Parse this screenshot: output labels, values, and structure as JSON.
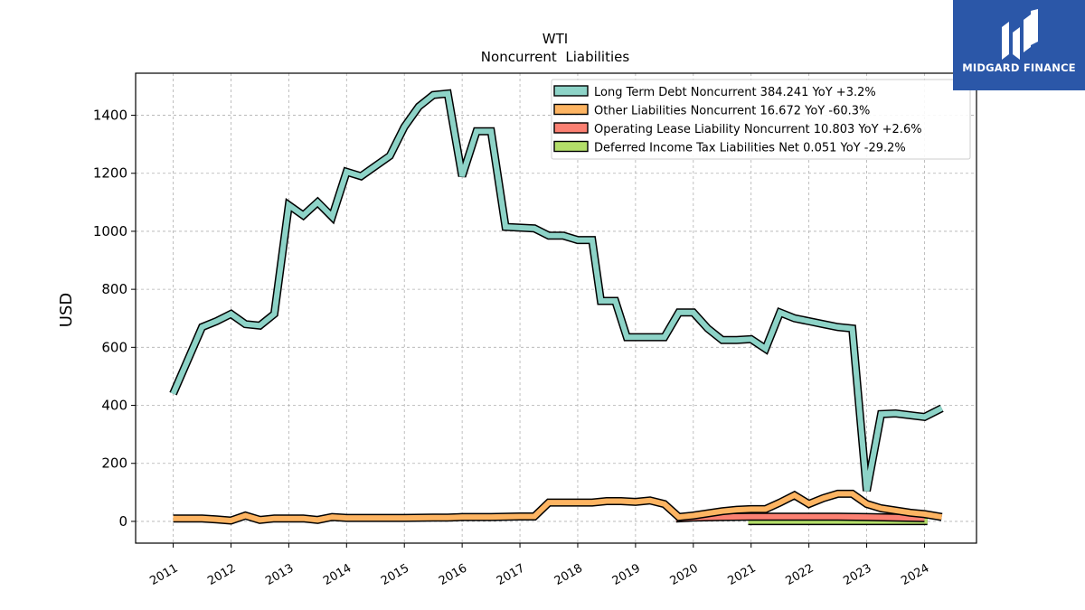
{
  "brand": {
    "name": "MIDGARD FINANCE",
    "bg_color": "#2b57a8"
  },
  "chart_data": {
    "type": "line",
    "title": "WTI",
    "subtitle": "Noncurrent  Liabilities",
    "xlabel": "",
    "ylabel": "USD",
    "ylim": [
      -75,
      1545
    ],
    "xlim": [
      2010.35,
      2024.9
    ],
    "yticks": [
      0,
      200,
      400,
      600,
      800,
      1000,
      1200,
      1400
    ],
    "xticks": [
      "2011",
      "2012",
      "2013",
      "2014",
      "2015",
      "2016",
      "2017",
      "2018",
      "2019",
      "2020",
      "2021",
      "2022",
      "2023",
      "2024"
    ],
    "grid": true,
    "legend_position": "top-right",
    "series": [
      {
        "name": "Long Term Debt Noncurrent  384.241 YoY +3.2%",
        "color": "#8dd3c7",
        "points": [
          [
            2011.0,
            440
          ],
          [
            2011.5,
            670
          ],
          [
            2011.75,
            690
          ],
          [
            2012.0,
            715
          ],
          [
            2012.25,
            680
          ],
          [
            2012.5,
            675
          ],
          [
            2012.75,
            715
          ],
          [
            2013.0,
            1090
          ],
          [
            2013.25,
            1055
          ],
          [
            2013.5,
            1100
          ],
          [
            2013.75,
            1050
          ],
          [
            2014.0,
            1205
          ],
          [
            2014.25,
            1190
          ],
          [
            2014.5,
            1225
          ],
          [
            2014.75,
            1260
          ],
          [
            2015.0,
            1360
          ],
          [
            2015.25,
            1430
          ],
          [
            2015.5,
            1470
          ],
          [
            2015.75,
            1475
          ],
          [
            2016.0,
            1190
          ],
          [
            2016.25,
            1345
          ],
          [
            2016.5,
            1345
          ],
          [
            2016.75,
            1015
          ],
          [
            2017.25,
            1010
          ],
          [
            2017.5,
            985
          ],
          [
            2017.75,
            985
          ],
          [
            2018.0,
            970
          ],
          [
            2018.25,
            970
          ],
          [
            2018.4,
            760
          ],
          [
            2018.65,
            760
          ],
          [
            2018.85,
            635
          ],
          [
            2019.0,
            635
          ],
          [
            2019.5,
            635
          ],
          [
            2019.75,
            720
          ],
          [
            2020.0,
            720
          ],
          [
            2020.25,
            665
          ],
          [
            2020.5,
            625
          ],
          [
            2020.75,
            625
          ],
          [
            2021.0,
            628
          ],
          [
            2021.25,
            595
          ],
          [
            2021.5,
            720
          ],
          [
            2021.75,
            700
          ],
          [
            2022.0,
            690
          ],
          [
            2022.25,
            680
          ],
          [
            2022.5,
            670
          ],
          [
            2022.75,
            665
          ],
          [
            2023.0,
            105
          ],
          [
            2023.25,
            370
          ],
          [
            2023.5,
            372
          ],
          [
            2024.0,
            360
          ],
          [
            2024.3,
            390
          ]
        ]
      },
      {
        "name": "Other Liabilities Noncurrent  16.672 YoY -60.3%",
        "color": "#fdb462",
        "points": [
          [
            2011.0,
            10
          ],
          [
            2011.5,
            10
          ],
          [
            2011.75,
            7
          ],
          [
            2012.0,
            3
          ],
          [
            2012.25,
            20
          ],
          [
            2012.5,
            5
          ],
          [
            2012.75,
            10
          ],
          [
            2013.0,
            10
          ],
          [
            2013.25,
            10
          ],
          [
            2013.5,
            5
          ],
          [
            2013.75,
            15
          ],
          [
            2014.0,
            12
          ],
          [
            2014.5,
            12
          ],
          [
            2015.0,
            12
          ],
          [
            2015.5,
            13
          ],
          [
            2015.75,
            13
          ],
          [
            2016.0,
            15
          ],
          [
            2016.5,
            15
          ],
          [
            2017.0,
            17
          ],
          [
            2017.25,
            17
          ],
          [
            2017.5,
            65
          ],
          [
            2017.75,
            65
          ],
          [
            2018.0,
            65
          ],
          [
            2018.25,
            65
          ],
          [
            2018.5,
            70
          ],
          [
            2018.75,
            70
          ],
          [
            2019.0,
            67
          ],
          [
            2019.25,
            72
          ],
          [
            2019.5,
            60
          ],
          [
            2019.75,
            15
          ],
          [
            2020.0,
            20
          ],
          [
            2020.5,
            35
          ],
          [
            2020.75,
            40
          ],
          [
            2021.0,
            42
          ],
          [
            2021.25,
            42
          ],
          [
            2021.5,
            65
          ],
          [
            2021.75,
            90
          ],
          [
            2022.0,
            60
          ],
          [
            2022.25,
            80
          ],
          [
            2022.5,
            95
          ],
          [
            2022.75,
            95
          ],
          [
            2023.0,
            60
          ],
          [
            2023.25,
            45
          ],
          [
            2023.75,
            30
          ],
          [
            2024.0,
            25
          ],
          [
            2024.3,
            15
          ]
        ]
      },
      {
        "name": "Operating Lease Liability Noncurrent  10.803 YoY +2.6%",
        "color": "#fb8072",
        "points": [
          [
            2019.7,
            10
          ],
          [
            2020.0,
            13
          ],
          [
            2020.5,
            15
          ],
          [
            2021.0,
            16
          ],
          [
            2021.5,
            16
          ],
          [
            2022.0,
            16
          ],
          [
            2022.5,
            16
          ],
          [
            2023.0,
            15
          ],
          [
            2023.5,
            13
          ],
          [
            2024.0,
            11
          ]
        ]
      },
      {
        "name": "Deferred Income Tax Liabilities Net  0.051 YoY -29.2%",
        "color": "#b3de69",
        "points": [
          [
            2020.95,
            1
          ],
          [
            2021.5,
            1
          ],
          [
            2022.0,
            1
          ],
          [
            2022.5,
            1
          ],
          [
            2023.0,
            1
          ],
          [
            2023.5,
            1
          ],
          [
            2024.0,
            1
          ],
          [
            2024.05,
            1
          ]
        ]
      }
    ]
  }
}
